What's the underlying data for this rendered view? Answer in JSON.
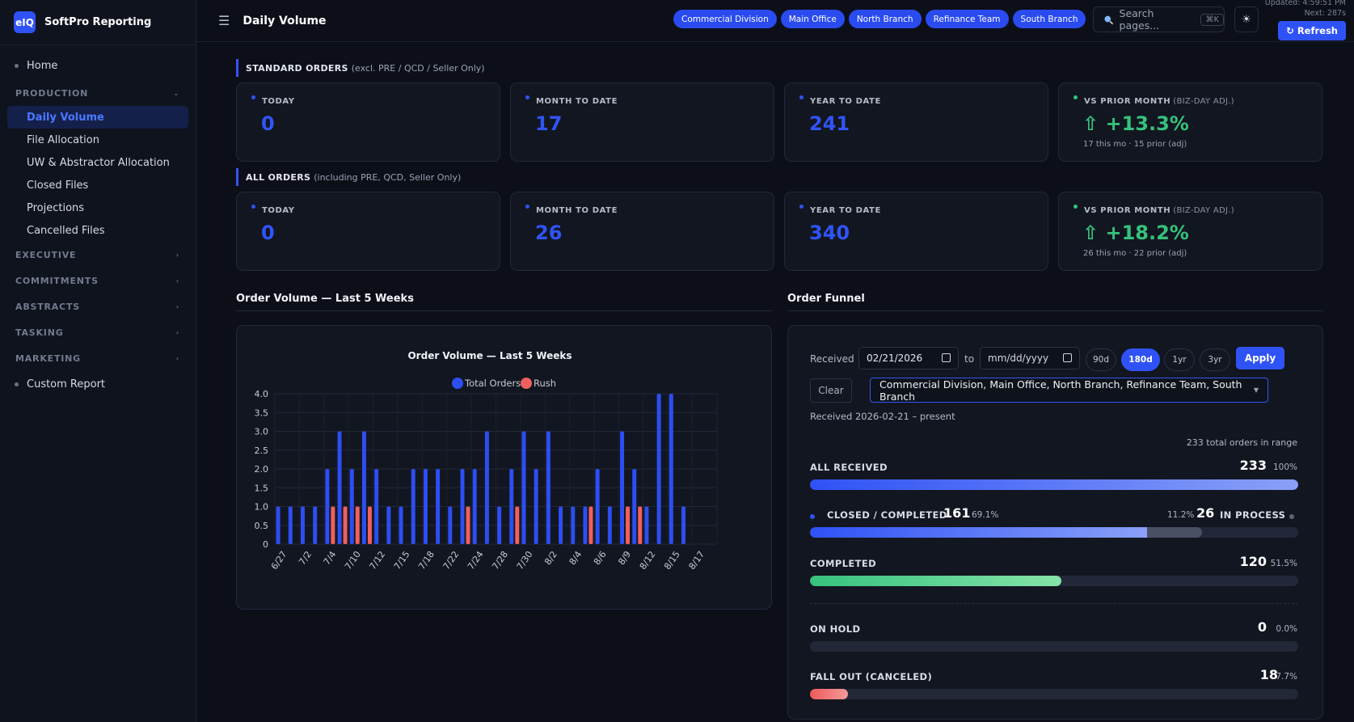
{
  "app": {
    "logo_text": "eIQ",
    "name": "SoftPro Reporting"
  },
  "sidebar": {
    "home": "Home",
    "production": {
      "label": "PRODUCTION",
      "items": [
        "Daily Volume",
        "File Allocation",
        "UW & Abstractor Allocation",
        "Closed Files",
        "Projections",
        "Cancelled Files"
      ]
    },
    "sections": [
      "EXECUTIVE",
      "COMMITMENTS",
      "ABSTRACTS",
      "TASKING",
      "MARKETING"
    ],
    "custom_report": "Custom Report"
  },
  "topbar": {
    "title": "Daily Volume",
    "branches": [
      "Commercial Division",
      "Main Office",
      "North Branch",
      "Refinance Team",
      "South Branch"
    ],
    "search_placeholder": "Search pages...",
    "search_shortcut": "⌘K",
    "updated": "Updated: 4:59:51 PM",
    "next": "Next: 287s",
    "refresh": "↻ Refresh"
  },
  "standard_orders": {
    "label": "STANDARD ORDERS",
    "qualifier": "(excl. PRE / QCD / Seller Only)",
    "today_label": "TODAY",
    "today": "0",
    "mtd_label": "MONTH TO DATE",
    "mtd": "17",
    "ytd_label": "YEAR TO DATE",
    "ytd": "241",
    "vs_label": "VS PRIOR MONTH",
    "vs_sub": "(BIZ-DAY ADJ.)",
    "vs_value": "⇧ +13.3%",
    "vs_note": "17 this mo · 15 prior (adj)"
  },
  "all_orders": {
    "label": "ALL ORDERS",
    "qualifier": "(including PRE, QCD, Seller Only)",
    "today_label": "TODAY",
    "today": "0",
    "mtd_label": "MONTH TO DATE",
    "mtd": "26",
    "ytd_label": "YEAR TO DATE",
    "ytd": "340",
    "vs_label": "VS PRIOR MONTH",
    "vs_sub": "(BIZ-DAY ADJ.)",
    "vs_value": "⇧ +18.2%",
    "vs_note": "26 this mo · 22 prior (adj)"
  },
  "volume_panel": {
    "title": "Order Volume — Last 5 Weeks"
  },
  "chart_data": {
    "type": "bar",
    "title": "Order Volume — Last 5 Weeks",
    "tick_labels": [
      "6/27",
      "7/2",
      "7/4",
      "7/10",
      "7/12",
      "7/15",
      "7/18",
      "7/22",
      "7/24",
      "7/28",
      "7/30",
      "8/2",
      "8/4",
      "8/6",
      "8/9",
      "8/12",
      "8/15",
      "8/17"
    ],
    "x": [
      "6/27",
      "6/30",
      "7/1",
      "7/2",
      "7/3",
      "7/4",
      "7/7",
      "7/10",
      "7/11",
      "7/12",
      "7/14",
      "7/15",
      "7/17",
      "7/18",
      "7/21",
      "7/22",
      "7/23",
      "7/24",
      "7/25",
      "7/28",
      "7/29",
      "7/30",
      "7/31",
      "8/2",
      "8/3",
      "8/4",
      "8/5",
      "8/6",
      "8/8",
      "8/9",
      "8/11",
      "8/12",
      "8/13",
      "8/15",
      "8/16",
      "8/17"
    ],
    "series": [
      {
        "name": "Total Orders",
        "color": "#2c4ef2",
        "values": [
          1,
          1,
          1,
          1,
          2,
          3,
          2,
          3,
          2,
          1,
          1,
          2,
          2,
          2,
          1,
          2,
          2,
          3,
          1,
          2,
          3,
          2,
          3,
          1,
          1,
          1,
          2,
          1,
          3,
          2,
          1,
          4,
          4,
          1,
          0,
          0
        ]
      },
      {
        "name": "Rush",
        "color": "#f0605d",
        "values": [
          0,
          0,
          0,
          0,
          1,
          1,
          1,
          1,
          0,
          0,
          0,
          0,
          0,
          0,
          0,
          1,
          0,
          0,
          0,
          1,
          0,
          0,
          0,
          0,
          0,
          1,
          0,
          0,
          1,
          1,
          0,
          0,
          0,
          0,
          0,
          0
        ]
      }
    ],
    "ylim": [
      0,
      4
    ],
    "yticks": [
      "0",
      "0.5",
      "1.0",
      "1.5",
      "2.0",
      "2.5",
      "3.0",
      "3.5",
      "4.0"
    ],
    "grid": true,
    "legend": "top-center"
  },
  "funnel": {
    "title": "Order Funnel",
    "received_label": "Received",
    "from_date": "02/21/2026",
    "to_label": "to",
    "to_placeholder": "mm/dd/yyyy",
    "ranges": [
      "90d",
      "180d",
      "1yr",
      "3yr"
    ],
    "apply": "Apply",
    "clear": "Clear",
    "branches_selected": "Commercial Division, Main Office, North Branch, Refinance Team, South Branch",
    "range_text": "Received 2026-02-21 – present",
    "total_text": "233 total orders in range",
    "all_received": {
      "label": "ALL RECEIVED",
      "count": "233",
      "pct": "100%",
      "fraction": 1.0
    },
    "closed": {
      "label": "CLOSED / COMPLETED",
      "count": "161",
      "pct": "69.1%",
      "fraction": 0.691
    },
    "in_process": {
      "label": "IN PROCESS",
      "count": "26",
      "pct": "11.2%",
      "fraction": 0.112
    },
    "completed": {
      "label": "COMPLETED",
      "count": "120",
      "pct": "51.5%",
      "fraction": 0.515
    },
    "on_hold": {
      "label": "ON HOLD",
      "count": "0",
      "pct": "0.0%",
      "fraction": 0.0
    },
    "fall_out": {
      "label": "FALL OUT (CANCELED)",
      "count": "18",
      "pct": "7.7%",
      "fraction": 0.077
    }
  }
}
